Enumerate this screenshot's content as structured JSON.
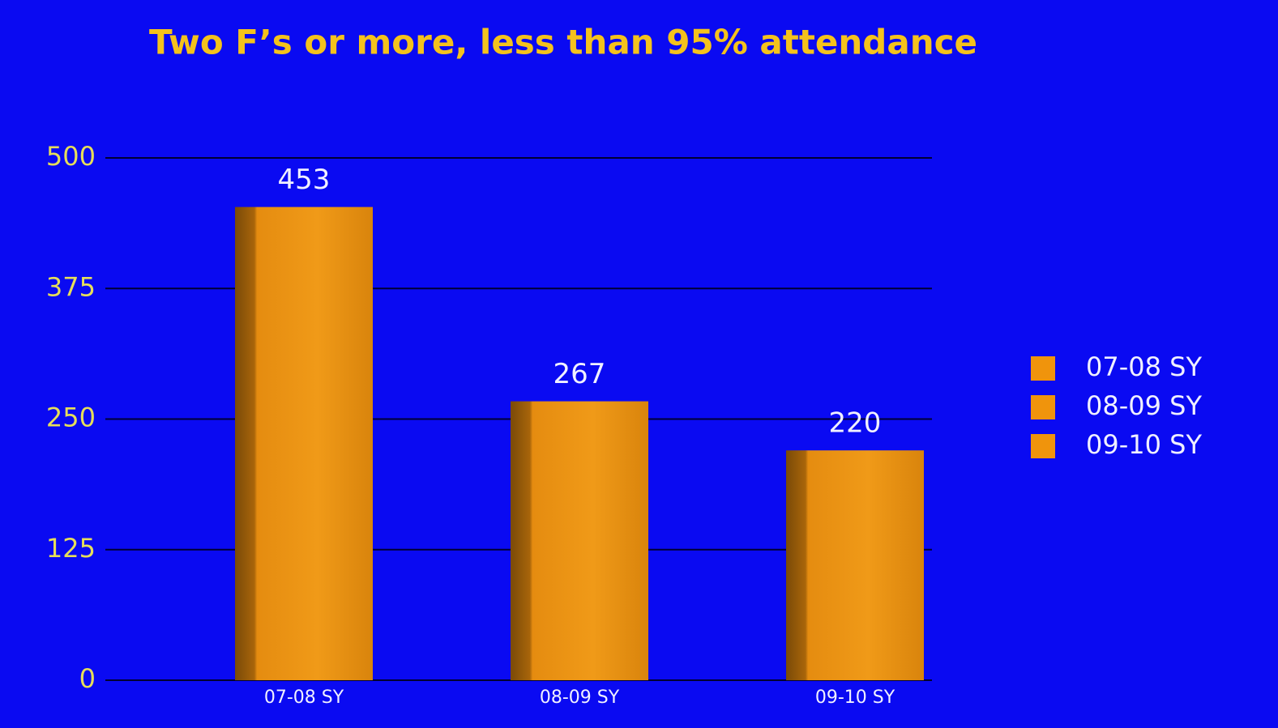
{
  "chart_data": {
    "type": "bar",
    "title": "Two F’s or more, less than 95% attendance",
    "categories": [
      "07-08 SY",
      "08-09 SY",
      "09-10 SY"
    ],
    "values": [
      453,
      267,
      220
    ],
    "color": "#f0940c",
    "background": "#0a0af2",
    "ylim": [
      0,
      500
    ],
    "yticks": [
      0,
      125,
      250,
      375,
      500
    ],
    "grid": true,
    "legend": "right"
  }
}
